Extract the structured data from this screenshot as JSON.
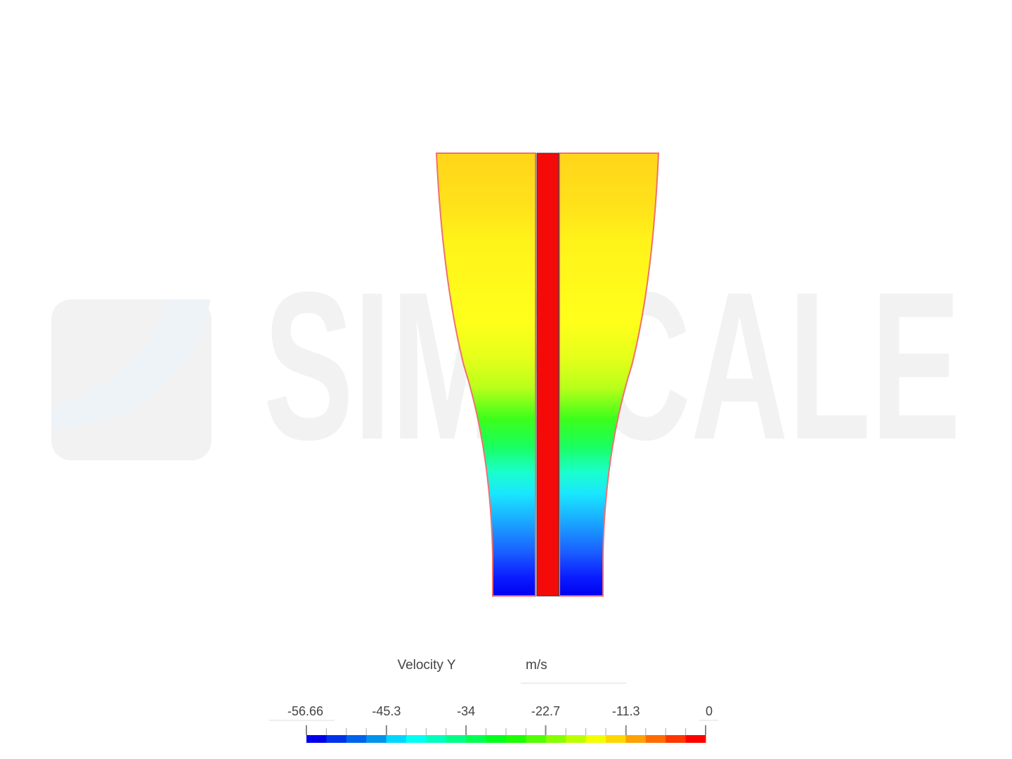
{
  "watermark": "SIMSCALE",
  "legend": {
    "title": "Velocity Y",
    "unit": "m/s",
    "range": [
      -56.66,
      0
    ],
    "ticks": [
      -56.66,
      -45.3,
      -34,
      -22.7,
      -11.3,
      0
    ]
  }
}
